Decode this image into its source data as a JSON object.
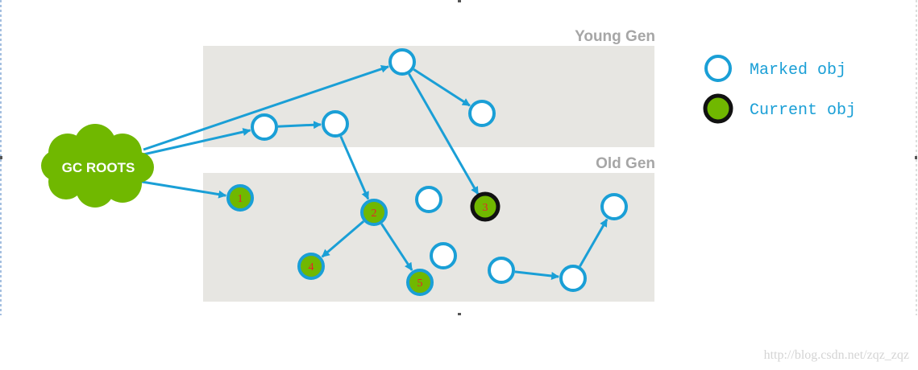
{
  "regions": {
    "young_gen": {
      "label": "Young Gen"
    },
    "old_gen": {
      "label": "Old Gen"
    }
  },
  "gc_roots": {
    "label": "GC ROOTS"
  },
  "legend": {
    "marked": {
      "label": "Marked obj"
    },
    "current": {
      "label": "Current obj"
    }
  },
  "nodes": [
    {
      "id": "y1",
      "state": "marked",
      "label": ""
    },
    {
      "id": "y2",
      "state": "marked",
      "label": ""
    },
    {
      "id": "y3",
      "state": "marked",
      "label": ""
    },
    {
      "id": "y4",
      "state": "marked",
      "label": ""
    },
    {
      "id": "o1",
      "state": "visited",
      "label": "1"
    },
    {
      "id": "o2",
      "state": "visited",
      "label": "2"
    },
    {
      "id": "o3",
      "state": "current",
      "label": "3"
    },
    {
      "id": "o4",
      "state": "visited",
      "label": "4"
    },
    {
      "id": "o5",
      "state": "visited",
      "label": "5"
    },
    {
      "id": "o6",
      "state": "marked",
      "label": ""
    },
    {
      "id": "o7",
      "state": "marked",
      "label": ""
    },
    {
      "id": "o8",
      "state": "marked",
      "label": ""
    },
    {
      "id": "o9",
      "state": "marked",
      "label": ""
    },
    {
      "id": "o10",
      "state": "marked",
      "label": ""
    }
  ],
  "edges": [
    {
      "from": "roots",
      "to": "y1"
    },
    {
      "from": "roots",
      "to": "y3"
    },
    {
      "from": "roots",
      "to": "o1"
    },
    {
      "from": "y1",
      "to": "y2"
    },
    {
      "from": "y1",
      "to": "o3"
    },
    {
      "from": "y3",
      "to": "y4"
    },
    {
      "from": "y4",
      "to": "o2"
    },
    {
      "from": "o2",
      "to": "o4"
    },
    {
      "from": "o2",
      "to": "o5"
    },
    {
      "from": "o8",
      "to": "o9"
    },
    {
      "from": "o9",
      "to": "o10"
    }
  ],
  "colors": {
    "region_fill": "#e7e6e2",
    "stroke": "#1a9fd6",
    "green": "#70b800",
    "current_ring": "#111111"
  },
  "watermark": "http://blog.csdn.net/zqz_zqz"
}
